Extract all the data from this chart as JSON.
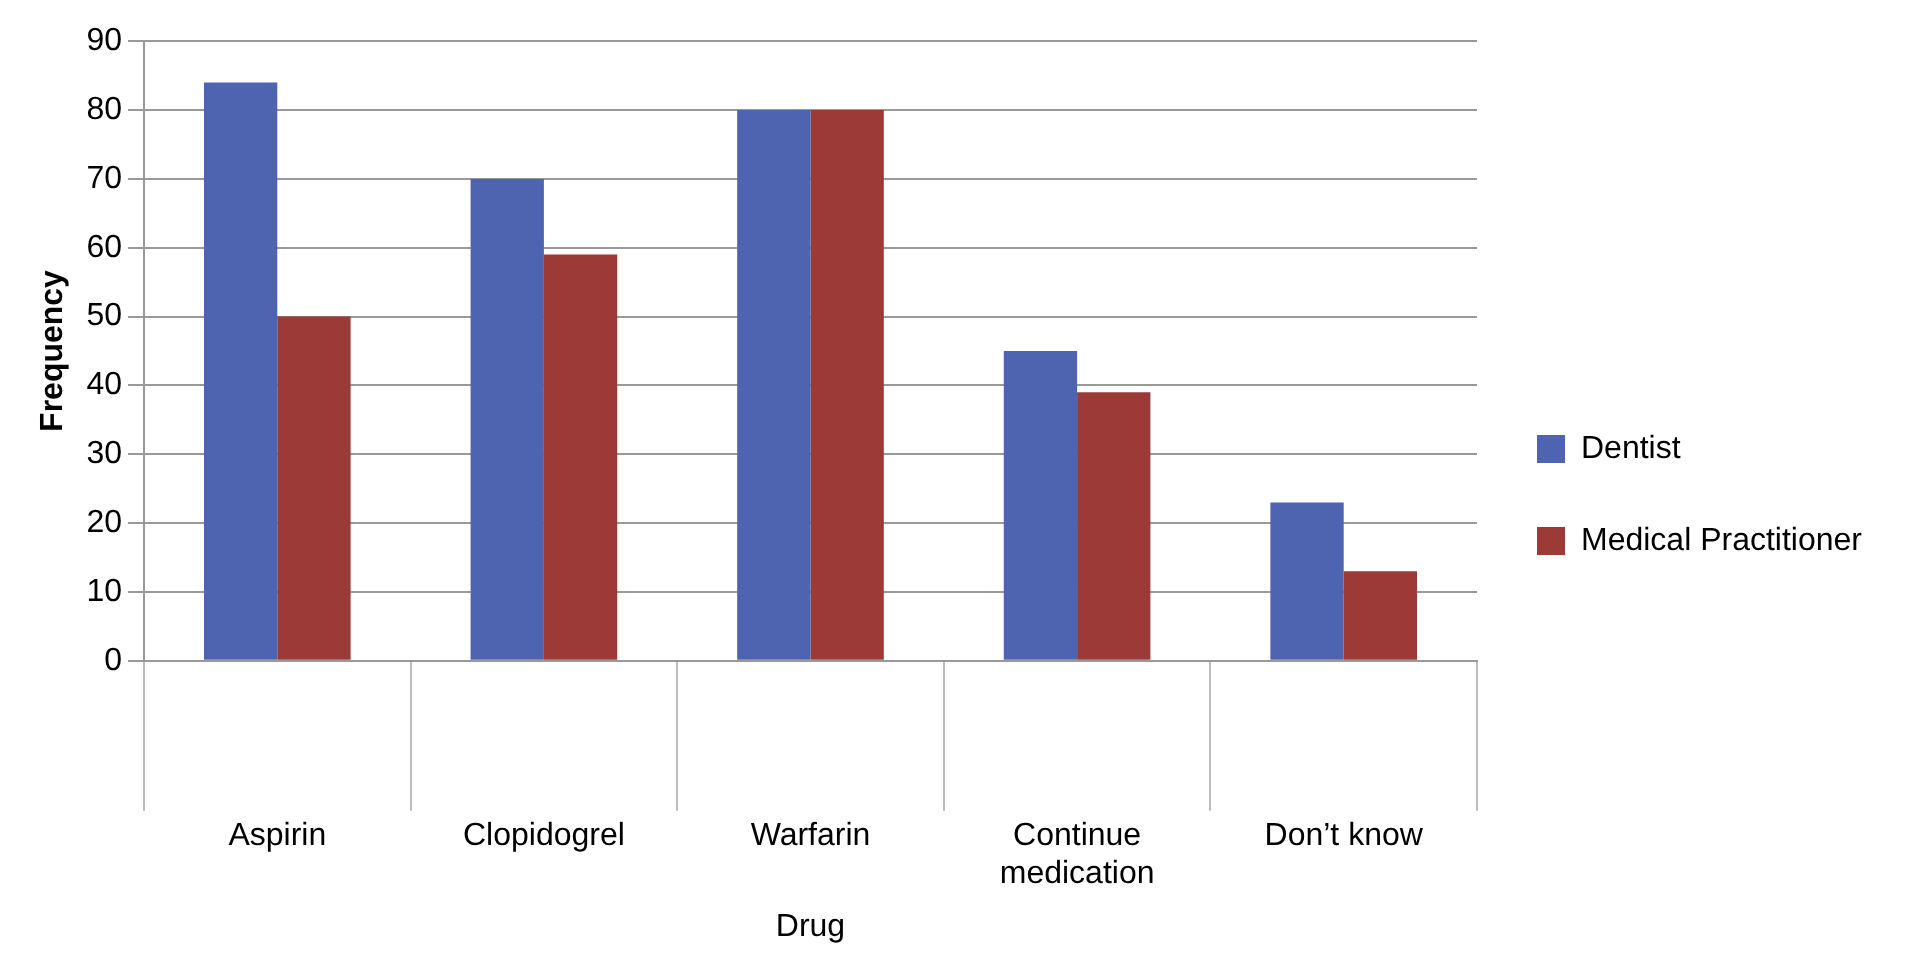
{
  "chart_data": {
    "type": "bar",
    "xlabel": "Drug",
    "ylabel": "Frequency",
    "categories": [
      "Aspirin",
      "Clopidogrel",
      "Warfarin",
      "Continue medication",
      "Don’t know"
    ],
    "series": [
      {
        "name": "Dentist",
        "color": "#4f64b0",
        "values": [
          84,
          70,
          80,
          45,
          23
        ]
      },
      {
        "name": "Medical Practitioner",
        "color": "#9b3a37",
        "values": [
          50,
          59,
          80,
          39,
          13
        ]
      }
    ],
    "ylim": [
      0,
      90
    ],
    "yticks": [
      0,
      10,
      20,
      30,
      40,
      50,
      60,
      70,
      80,
      90
    ],
    "grid": "y",
    "legend": "right"
  }
}
